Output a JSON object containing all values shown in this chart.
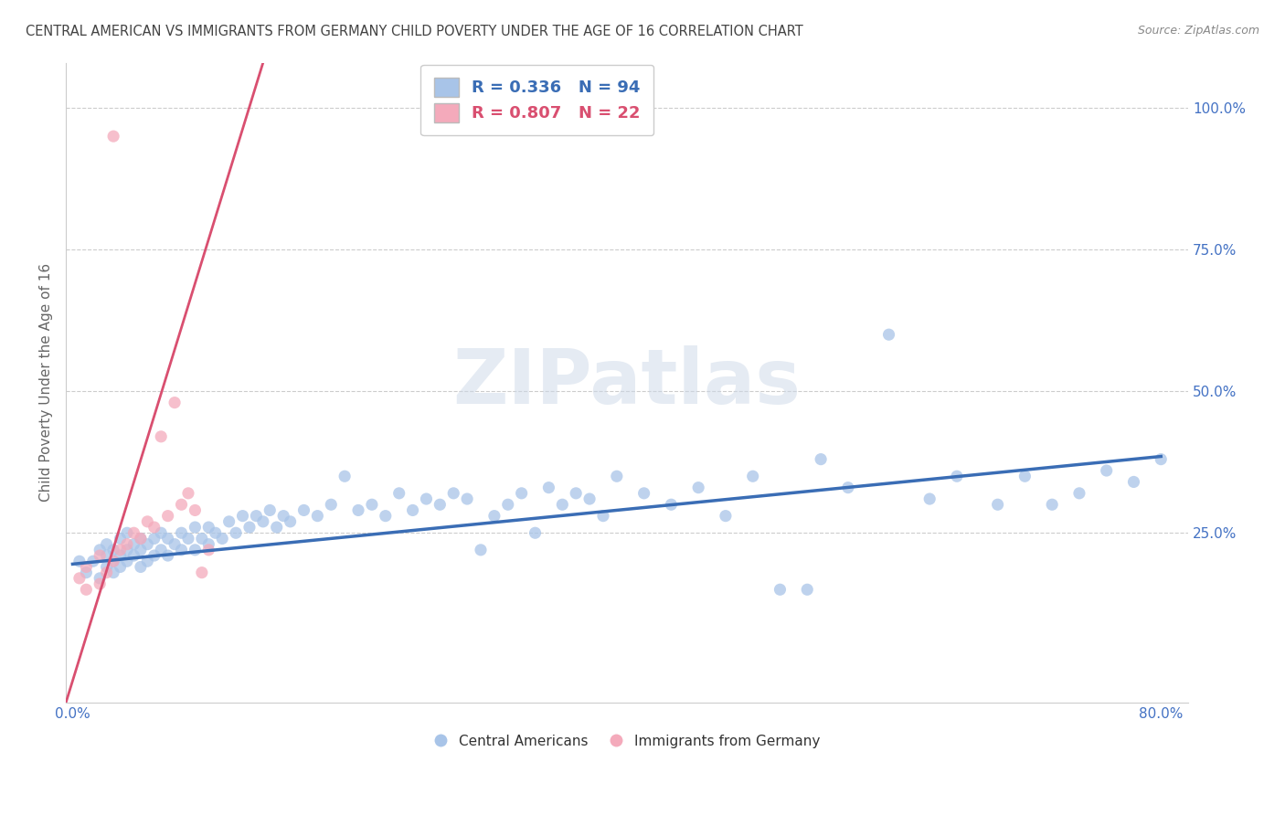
{
  "title": "CENTRAL AMERICAN VS IMMIGRANTS FROM GERMANY CHILD POVERTY UNDER THE AGE OF 16 CORRELATION CHART",
  "source": "Source: ZipAtlas.com",
  "xlabel": "",
  "ylabel": "Child Poverty Under the Age of 16",
  "xlim": [
    -0.005,
    0.82
  ],
  "ylim": [
    -0.05,
    1.08
  ],
  "xticks": [
    0.0,
    0.1,
    0.2,
    0.3,
    0.4,
    0.5,
    0.6,
    0.7,
    0.8
  ],
  "xticklabels": [
    "0.0%",
    "",
    "",
    "",
    "",
    "",
    "",
    "",
    "80.0%"
  ],
  "ytick_right_positions": [
    0.25,
    0.5,
    0.75,
    1.0
  ],
  "ytick_right_labels": [
    "25.0%",
    "50.0%",
    "75.0%",
    "100.0%"
  ],
  "blue_R": 0.336,
  "blue_N": 94,
  "pink_R": 0.807,
  "pink_N": 22,
  "blue_color": "#a8c4e8",
  "pink_color": "#f4aabb",
  "blue_line_color": "#3a6db5",
  "pink_line_color": "#d94f70",
  "legend_label_blue": "Central Americans",
  "legend_label_pink": "Immigrants from Germany",
  "watermark": "ZIPatlas",
  "background_color": "#ffffff",
  "grid_color": "#cccccc",
  "title_color": "#444444",
  "axis_label_color": "#666666",
  "tick_color": "#4472c4",
  "blue_scatter_x": [
    0.005,
    0.01,
    0.015,
    0.02,
    0.02,
    0.025,
    0.025,
    0.025,
    0.03,
    0.03,
    0.03,
    0.035,
    0.035,
    0.035,
    0.04,
    0.04,
    0.04,
    0.045,
    0.045,
    0.05,
    0.05,
    0.05,
    0.055,
    0.055,
    0.06,
    0.06,
    0.065,
    0.065,
    0.07,
    0.07,
    0.075,
    0.08,
    0.08,
    0.085,
    0.09,
    0.09,
    0.095,
    0.1,
    0.1,
    0.105,
    0.11,
    0.115,
    0.12,
    0.125,
    0.13,
    0.135,
    0.14,
    0.145,
    0.15,
    0.155,
    0.16,
    0.17,
    0.18,
    0.19,
    0.2,
    0.21,
    0.22,
    0.23,
    0.24,
    0.25,
    0.26,
    0.27,
    0.28,
    0.29,
    0.3,
    0.31,
    0.32,
    0.33,
    0.34,
    0.35,
    0.36,
    0.37,
    0.38,
    0.39,
    0.4,
    0.42,
    0.44,
    0.46,
    0.48,
    0.5,
    0.52,
    0.54,
    0.55,
    0.57,
    0.6,
    0.63,
    0.65,
    0.68,
    0.7,
    0.72,
    0.74,
    0.76,
    0.78,
    0.8
  ],
  "blue_scatter_y": [
    0.2,
    0.18,
    0.2,
    0.17,
    0.22,
    0.19,
    0.21,
    0.23,
    0.18,
    0.2,
    0.22,
    0.19,
    0.21,
    0.24,
    0.2,
    0.22,
    0.25,
    0.21,
    0.23,
    0.19,
    0.22,
    0.24,
    0.2,
    0.23,
    0.21,
    0.24,
    0.22,
    0.25,
    0.21,
    0.24,
    0.23,
    0.22,
    0.25,
    0.24,
    0.22,
    0.26,
    0.24,
    0.23,
    0.26,
    0.25,
    0.24,
    0.27,
    0.25,
    0.28,
    0.26,
    0.28,
    0.27,
    0.29,
    0.26,
    0.28,
    0.27,
    0.29,
    0.28,
    0.3,
    0.35,
    0.29,
    0.3,
    0.28,
    0.32,
    0.29,
    0.31,
    0.3,
    0.32,
    0.31,
    0.22,
    0.28,
    0.3,
    0.32,
    0.25,
    0.33,
    0.3,
    0.32,
    0.31,
    0.28,
    0.35,
    0.32,
    0.3,
    0.33,
    0.28,
    0.35,
    0.15,
    0.15,
    0.38,
    0.33,
    0.6,
    0.31,
    0.35,
    0.3,
    0.35,
    0.3,
    0.32,
    0.36,
    0.34,
    0.38
  ],
  "pink_scatter_x": [
    0.005,
    0.01,
    0.01,
    0.02,
    0.02,
    0.025,
    0.03,
    0.03,
    0.035,
    0.04,
    0.045,
    0.05,
    0.055,
    0.06,
    0.065,
    0.07,
    0.075,
    0.08,
    0.085,
    0.09,
    0.095,
    0.1
  ],
  "pink_scatter_y": [
    0.17,
    0.15,
    0.19,
    0.16,
    0.21,
    0.18,
    0.2,
    0.95,
    0.22,
    0.23,
    0.25,
    0.24,
    0.27,
    0.26,
    0.42,
    0.28,
    0.48,
    0.3,
    0.32,
    0.29,
    0.18,
    0.22
  ],
  "blue_trend_x": [
    0.0,
    0.8
  ],
  "blue_trend_y": [
    0.195,
    0.385
  ],
  "pink_trend_x": [
    -0.005,
    0.14
  ],
  "pink_trend_y": [
    -0.05,
    1.08
  ]
}
